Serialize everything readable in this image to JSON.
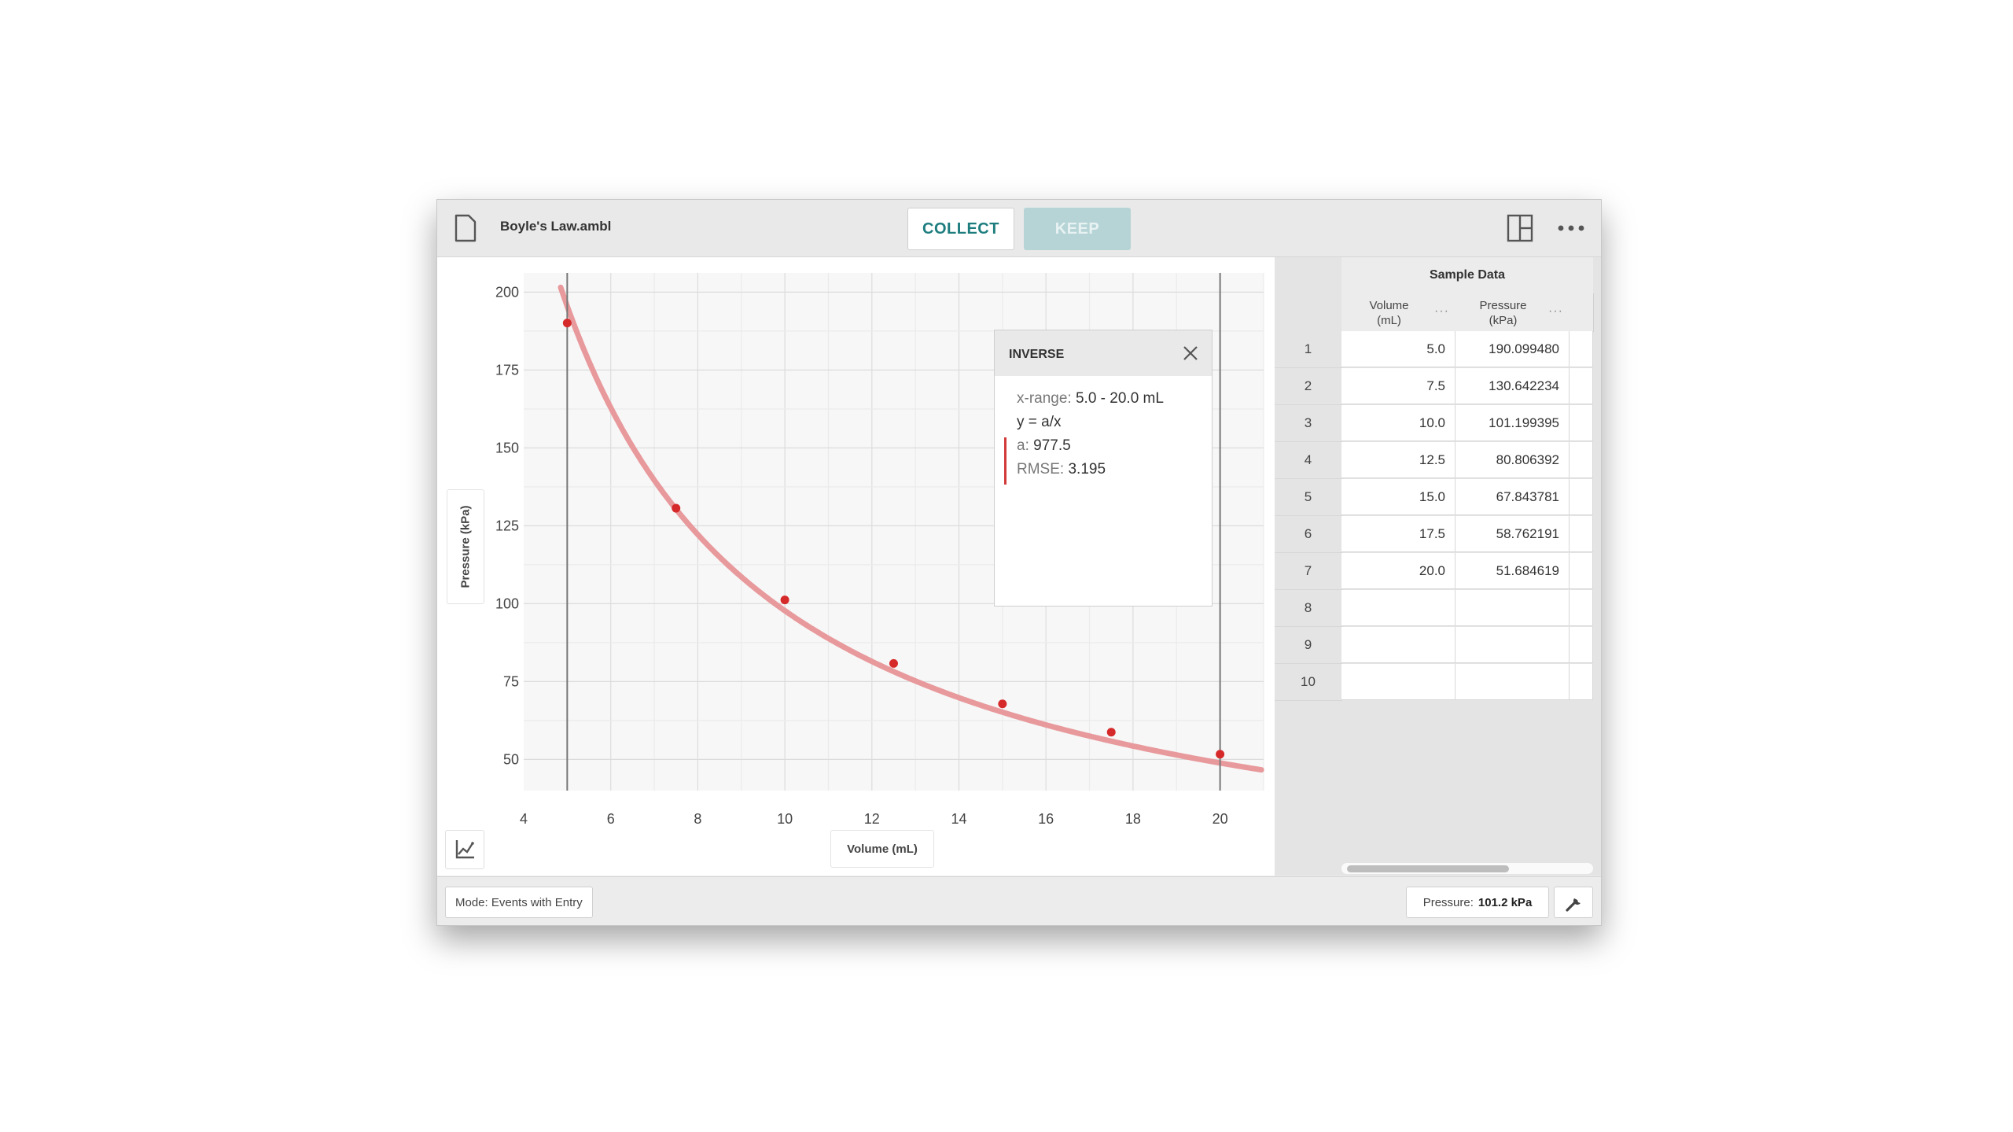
{
  "header": {
    "file_name": "Boyle's Law.ambl",
    "collect_label": "COLLECT",
    "keep_label": "KEEP"
  },
  "graph": {
    "y_axis_label": "Pressure (kPa)",
    "x_axis_label": "Volume (mL)"
  },
  "fit": {
    "title": "INVERSE",
    "range_key": "x-range:",
    "range_value": "5.0 - 20.0 mL",
    "equation": "y = a/x",
    "a_key": "a:",
    "a_value": "977.5",
    "rmse_key": "RMSE:",
    "rmse_value": "3.195"
  },
  "table": {
    "title": "Sample Data",
    "columns": [
      {
        "line1": "Volume",
        "line2": "(mL)"
      },
      {
        "line1": "Pressure",
        "line2": "(kPa)"
      }
    ],
    "rows": [
      {
        "n": "1",
        "volume": "5.0",
        "pressure": "190.099480"
      },
      {
        "n": "2",
        "volume": "7.5",
        "pressure": "130.642234"
      },
      {
        "n": "3",
        "volume": "10.0",
        "pressure": "101.199395"
      },
      {
        "n": "4",
        "volume": "12.5",
        "pressure": "80.806392"
      },
      {
        "n": "5",
        "volume": "15.0",
        "pressure": "67.843781"
      },
      {
        "n": "6",
        "volume": "17.5",
        "pressure": "58.762191"
      },
      {
        "n": "7",
        "volume": "20.0",
        "pressure": "51.684619"
      },
      {
        "n": "8",
        "volume": "",
        "pressure": ""
      },
      {
        "n": "9",
        "volume": "",
        "pressure": ""
      },
      {
        "n": "10",
        "volume": "",
        "pressure": ""
      }
    ]
  },
  "footer": {
    "mode_label": "Mode: Events with Entry",
    "meter_label": "Pressure:",
    "meter_value": "101.2 kPa"
  },
  "colors": {
    "accent": "#1d7d7e",
    "keep_bg": "#b6d4d6",
    "fit_curve": "#e8999c",
    "point": "#d62a2a"
  },
  "chart_data": {
    "type": "scatter",
    "x": [
      5.0,
      7.5,
      10.0,
      12.5,
      15.0,
      17.5,
      20.0
    ],
    "y": [
      190.09948,
      130.642234,
      101.199395,
      80.806392,
      67.843781,
      58.762191,
      51.684619
    ],
    "x_ticks": [
      4,
      6,
      8,
      10,
      12,
      14,
      16,
      18,
      20
    ],
    "y_ticks": [
      50,
      75,
      100,
      125,
      150,
      175,
      200
    ],
    "xlim": [
      4,
      21
    ],
    "ylim": [
      40,
      204
    ],
    "xlabel": "Volume (mL)",
    "ylabel": "Pressure (kPa)",
    "grid": true,
    "fit_curve": {
      "model": "inverse",
      "a": 977.5
    },
    "range_markers": [
      5.0,
      20.0
    ]
  }
}
